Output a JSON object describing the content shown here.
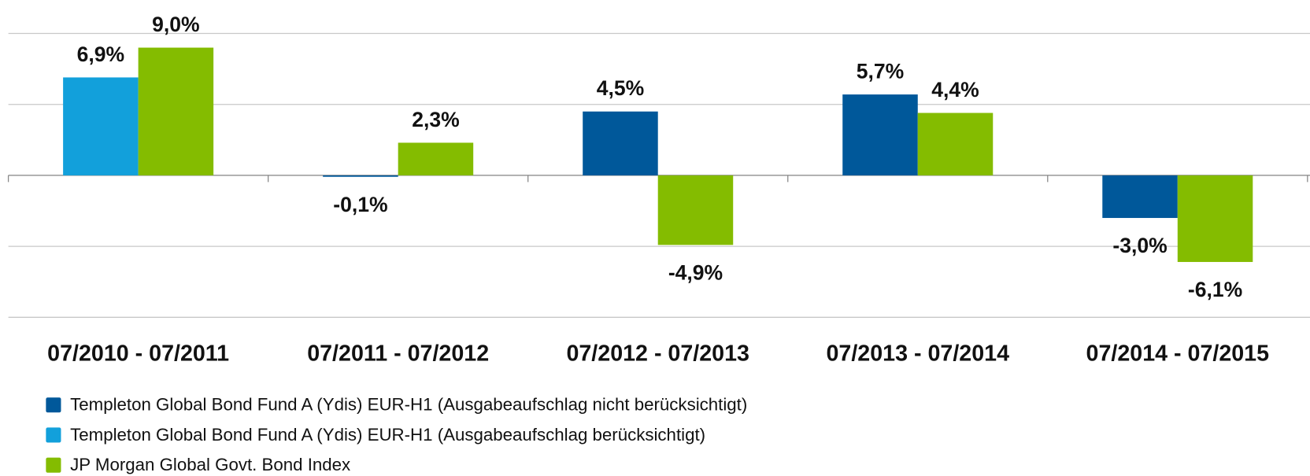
{
  "chart_data": {
    "type": "bar",
    "categories": [
      "07/2010 - 07/2011",
      "07/2011 - 07/2012",
      "07/2012 - 07/2013",
      "07/2013 - 07/2014",
      "07/2014 - 07/2015"
    ],
    "series": [
      {
        "name": "Templeton Global Bond Fund A (Ydis) EUR-H1 (Ausgabeaufschlag nicht berücksichtigt)",
        "color": "#00589a",
        "values": [
          null,
          -0.1,
          4.5,
          5.7,
          -3.0
        ],
        "value_labels": [
          null,
          "-0,1%",
          "4,5%",
          "5,7%",
          "-3,0%"
        ]
      },
      {
        "name": "Templeton Global Bond Fund A (Ydis) EUR-H1 (Ausgabeaufschlag berücksichtigt)",
        "color": "#12a0db",
        "values": [
          6.9,
          null,
          null,
          null,
          null
        ],
        "value_labels": [
          "6,9%",
          null,
          null,
          null,
          null
        ]
      },
      {
        "name": "JP Morgan Global Govt. Bond Index",
        "color": "#84bc00",
        "values": [
          9.0,
          2.3,
          -4.9,
          4.4,
          -6.1
        ],
        "value_labels": [
          "9,0%",
          "2,3%",
          "-4,9%",
          "4,4%",
          "-6,1%"
        ]
      }
    ],
    "ylim": [
      -10,
      10
    ],
    "yticks": [
      -10,
      -5,
      0,
      5,
      10
    ],
    "grid": true
  }
}
